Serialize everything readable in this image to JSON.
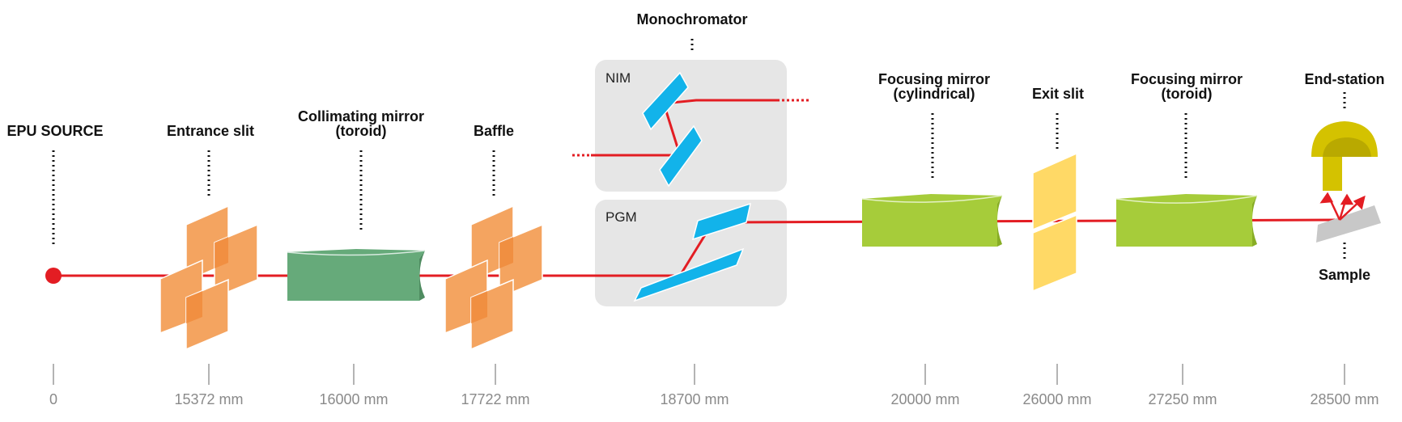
{
  "labels": {
    "epu_source": "EPU SOURCE",
    "entrance_slit": "Entrance slit",
    "collimating_l1": "Collimating mirror",
    "collimating_l2": "(toroid)",
    "baffle": "Baffle",
    "monochromator": "Monochromator",
    "nim": "NIM",
    "pgm": "PGM",
    "focusing_cyl_l1": "Focusing mirror",
    "focusing_cyl_l2": "(cylindrical)",
    "exit_slit": "Exit slit",
    "focusing_tor_l1": "Focusing mirror",
    "focusing_tor_l2": "(toroid)",
    "end_station": "End-station",
    "sample": "Sample"
  },
  "axis": {
    "ticks": [
      "0",
      "15372 mm",
      "16000 mm",
      "17722 mm",
      "18700 mm",
      "20000 mm",
      "26000 mm",
      "27250 mm",
      "28500 mm"
    ]
  },
  "colors": {
    "beam": "#e31d23",
    "slit": "#f4a460",
    "collimating_mirror": "#66aa7a",
    "mono_crystal": "#12b3ea",
    "mono_box": "#e6e6e6",
    "focusing_mirror": "#a6cc3a",
    "exit_slit": "#ffd966",
    "end_station": "#d4c200",
    "sample": "#c8c8c8"
  }
}
